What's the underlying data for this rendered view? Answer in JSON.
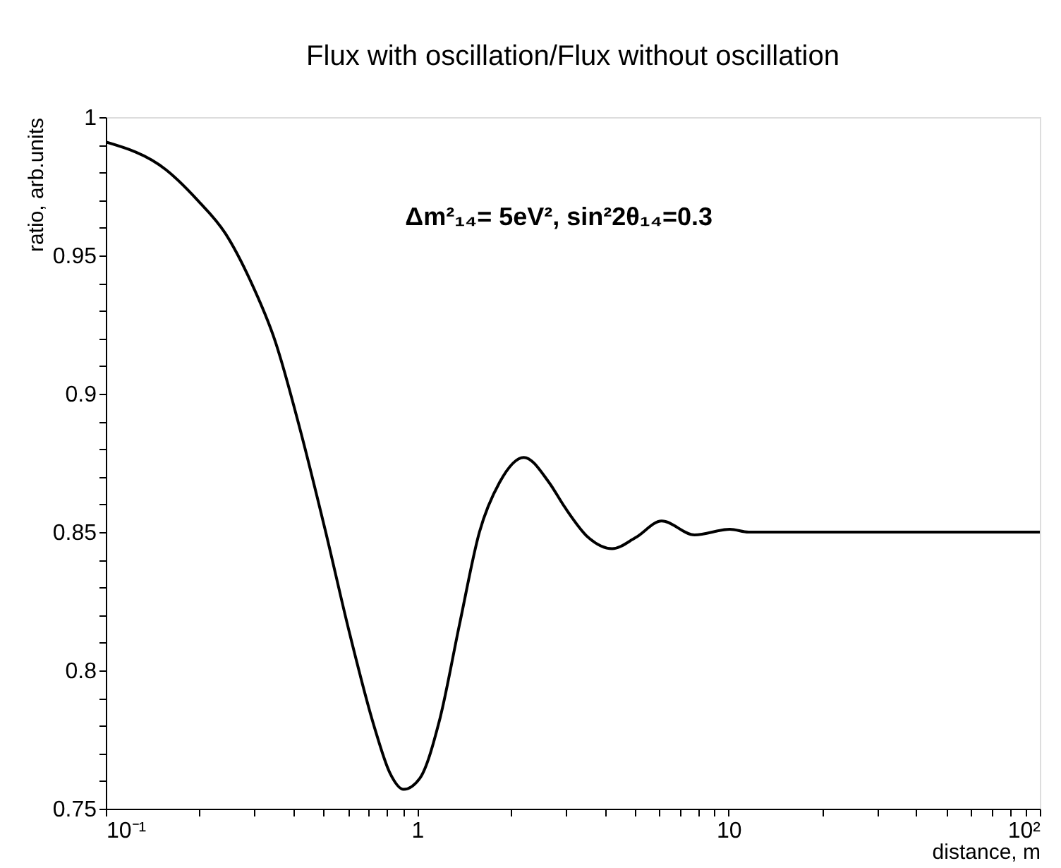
{
  "chart_data": {
    "type": "line",
    "title": "Flux with oscillation/Flux without oscillation",
    "xlabel": "distance, m",
    "ylabel": "ratio, arb.units",
    "annotations": [
      "Δm²₁₄= 5eV², sin²2θ₁₄=0.3"
    ],
    "log": "x",
    "grid": false,
    "xlim": [
      0.1,
      100
    ],
    "ylim": [
      0.75,
      1
    ],
    "xticks": [
      {
        "value": 0.1,
        "label": "10⁻¹"
      },
      {
        "value": 0.2,
        "label": null
      },
      {
        "value": 0.3,
        "label": null
      },
      {
        "value": 0.4,
        "label": null
      },
      {
        "value": 0.5,
        "label": null
      },
      {
        "value": 0.6,
        "label": null
      },
      {
        "value": 0.7,
        "label": null
      },
      {
        "value": 0.8,
        "label": null
      },
      {
        "value": 0.9,
        "label": null
      },
      1,
      {
        "value": 2,
        "label": null
      },
      {
        "value": 3,
        "label": null
      },
      {
        "value": 4,
        "label": null
      },
      {
        "value": 5,
        "label": null
      },
      {
        "value": 6,
        "label": null
      },
      {
        "value": 7,
        "label": null
      },
      {
        "value": 8,
        "label": null
      },
      {
        "value": 9,
        "label": null
      },
      10,
      {
        "value": 20,
        "label": null
      },
      {
        "value": 30,
        "label": null
      },
      {
        "value": 40,
        "label": null
      },
      {
        "value": 50,
        "label": null
      },
      {
        "value": 60,
        "label": null
      },
      {
        "value": 70,
        "label": null
      },
      {
        "value": 80,
        "label": null
      },
      {
        "value": 90,
        "label": null
      },
      {
        "value": 100,
        "label": "10²"
      }
    ],
    "yticks": [
      0.75,
      {
        "value": 0.76,
        "label": null
      },
      {
        "value": 0.77,
        "label": null
      },
      {
        "value": 0.78,
        "label": null
      },
      {
        "value": 0.79,
        "label": null
      },
      0.8,
      {
        "value": 0.81,
        "label": null
      },
      {
        "value": 0.82,
        "label": null
      },
      {
        "value": 0.83,
        "label": null
      },
      {
        "value": 0.84,
        "label": null
      },
      0.85,
      {
        "value": 0.86,
        "label": null
      },
      {
        "value": 0.87,
        "label": null
      },
      {
        "value": 0.88,
        "label": null
      },
      {
        "value": 0.89,
        "label": null
      },
      0.9,
      {
        "value": 0.91,
        "label": null
      },
      {
        "value": 0.92,
        "label": null
      },
      {
        "value": 0.93,
        "label": null
      },
      {
        "value": 0.94,
        "label": null
      },
      0.95,
      {
        "value": 0.96,
        "label": null
      },
      {
        "value": 0.97,
        "label": null
      },
      {
        "value": 0.98,
        "label": null
      },
      {
        "value": 0.99,
        "label": null
      },
      1
    ],
    "series": [
      {
        "color": "#000000",
        "x": [
          0.1,
          0.156,
          0.197,
          0.242,
          0.291,
          0.35,
          0.421,
          0.506,
          0.608,
          0.731,
          0.817,
          0.905,
          1.02,
          1.18,
          1.37,
          1.585,
          1.84,
          2.2,
          2.65,
          2.98,
          3.55,
          4.23,
          5.03,
          6.1,
          7.78,
          10.1,
          11.6,
          20,
          50,
          100
        ],
        "values": [
          0.991,
          0.981,
          0.97,
          0.958,
          0.941,
          0.919,
          0.887,
          0.851,
          0.813,
          0.779,
          0.763,
          0.757,
          0.761,
          0.782,
          0.817,
          0.85,
          0.868,
          0.877,
          0.868,
          0.859,
          0.848,
          0.844,
          0.848,
          0.854,
          0.849,
          0.851,
          0.85,
          0.85,
          0.85,
          0.85
        ]
      }
    ]
  }
}
